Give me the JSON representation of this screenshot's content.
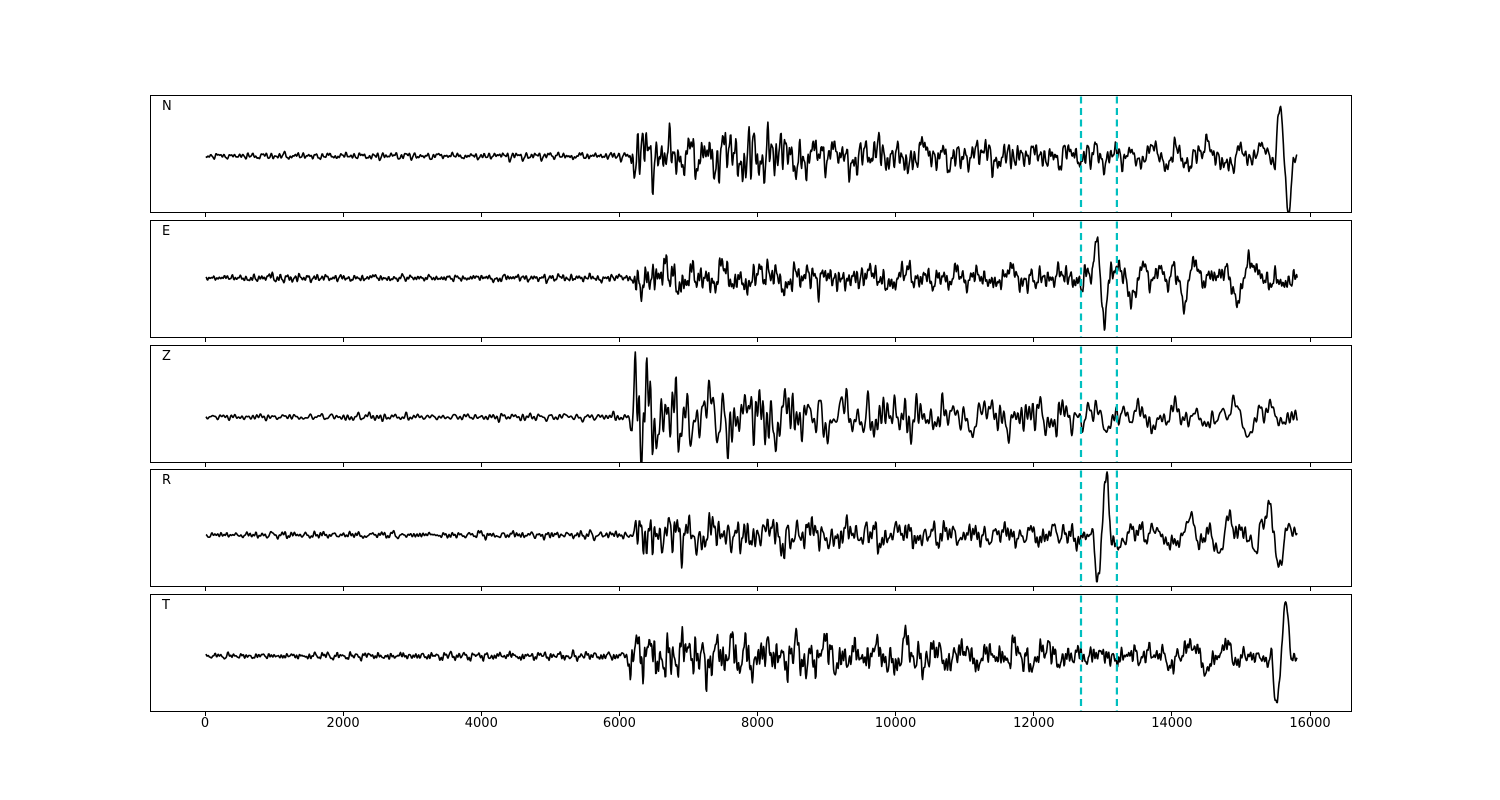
{
  "chart_data": {
    "type": "line",
    "title": "",
    "xlabel": "",
    "ylabel": "",
    "grid": false,
    "legend": "none",
    "x_range": [
      0,
      16000
    ],
    "x_ticks": [
      "0",
      "2000",
      "4000",
      "6000",
      "8000",
      "10000",
      "12000",
      "14000",
      "16000"
    ],
    "x_tick_values": [
      0,
      2000,
      4000,
      6000,
      8000,
      10000,
      12000,
      14000,
      16000
    ],
    "trace_color": "#000000",
    "data_start": 0,
    "data_end": 15800,
    "noise_onset_x": 6200,
    "marker_lines": {
      "x_values": [
        12670,
        13190
      ],
      "color": "#00bfbf",
      "style": "dashed"
    },
    "panels": [
      {
        "label": "N",
        "seed": 101,
        "baseline_offset": 1,
        "envelope": [
          [
            0,
            2.8
          ],
          [
            1500,
            3.8
          ],
          [
            3200,
            3.6
          ],
          [
            5200,
            4.2
          ],
          [
            6120,
            4.2
          ],
          [
            6190,
            26
          ],
          [
            6900,
            23
          ],
          [
            7700,
            28
          ],
          [
            8400,
            25
          ],
          [
            9200,
            17
          ],
          [
            10300,
            16
          ],
          [
            11400,
            15
          ],
          [
            12400,
            13
          ],
          [
            13000,
            15
          ],
          [
            13600,
            13
          ],
          [
            14100,
            23
          ],
          [
            14800,
            21
          ],
          [
            15250,
            13
          ],
          [
            15800,
            11
          ]
        ],
        "features": [
          {
            "x": 15480,
            "w": 130,
            "a": 57
          }
        ]
      },
      {
        "label": "E",
        "seed": 202,
        "baseline_offset": -2,
        "envelope": [
          [
            0,
            3
          ],
          [
            1100,
            5.5
          ],
          [
            1900,
            4
          ],
          [
            3600,
            4
          ],
          [
            5200,
            4.5
          ],
          [
            6170,
            4.5
          ],
          [
            6250,
            23
          ],
          [
            7100,
            19
          ],
          [
            8200,
            16
          ],
          [
            9400,
            14.5
          ],
          [
            10800,
            13.5
          ],
          [
            12200,
            12.5
          ],
          [
            12750,
            14
          ],
          [
            13300,
            19
          ],
          [
            14100,
            22
          ],
          [
            14800,
            24
          ],
          [
            15500,
            22
          ],
          [
            15800,
            17
          ]
        ],
        "features": [
          {
            "x": 12840,
            "w": 115,
            "a": 46
          }
        ]
      },
      {
        "label": "Z",
        "seed": 303,
        "baseline_offset": 12,
        "envelope": [
          [
            0,
            2.8
          ],
          [
            2100,
            4.2
          ],
          [
            4200,
            3.8
          ],
          [
            5900,
            4.8
          ],
          [
            6130,
            4.8
          ],
          [
            6210,
            46
          ],
          [
            6600,
            40
          ],
          [
            7300,
            34
          ],
          [
            8100,
            29
          ],
          [
            9100,
            23
          ],
          [
            10200,
            20
          ],
          [
            11600,
            17.5
          ],
          [
            13100,
            16.5
          ],
          [
            14200,
            16.5
          ],
          [
            15100,
            17.5
          ],
          [
            15800,
            14
          ]
        ],
        "features": [
          {
            "x": 6170,
            "w": 85,
            "a": 52
          }
        ]
      },
      {
        "label": "R",
        "seed": 404,
        "baseline_offset": 6,
        "envelope": [
          [
            0,
            2.8
          ],
          [
            1400,
            4.6
          ],
          [
            2900,
            3.8
          ],
          [
            5100,
            4.4
          ],
          [
            6170,
            4.4
          ],
          [
            6250,
            24
          ],
          [
            7300,
            17.5
          ],
          [
            8400,
            16.5
          ],
          [
            9700,
            14.5
          ],
          [
            11200,
            13.5
          ],
          [
            12350,
            12.5
          ],
          [
            12800,
            15
          ],
          [
            13400,
            16.5
          ],
          [
            14300,
            17.5
          ],
          [
            15050,
            21
          ],
          [
            15550,
            17
          ],
          [
            15800,
            13
          ]
        ],
        "features": [
          {
            "x": 12850,
            "w": 125,
            "a": -45
          },
          {
            "x": 15330,
            "w": 150,
            "a": 32
          }
        ]
      },
      {
        "label": "T",
        "seed": 505,
        "baseline_offset": 2,
        "envelope": [
          [
            0,
            2.8
          ],
          [
            1500,
            3.8
          ],
          [
            3100,
            4.4
          ],
          [
            5100,
            4.8
          ],
          [
            6090,
            4.8
          ],
          [
            6160,
            26
          ],
          [
            7000,
            24.5
          ],
          [
            8100,
            22.5
          ],
          [
            9300,
            18.5
          ],
          [
            10600,
            16.5
          ],
          [
            12100,
            14.5
          ],
          [
            12750,
            12.5
          ],
          [
            13600,
            16.5
          ],
          [
            14300,
            21.5
          ],
          [
            15000,
            18.5
          ],
          [
            15250,
            13
          ],
          [
            15800,
            11
          ]
        ],
        "features": [
          {
            "x": 15430,
            "w": 140,
            "a": -54
          }
        ]
      }
    ]
  }
}
